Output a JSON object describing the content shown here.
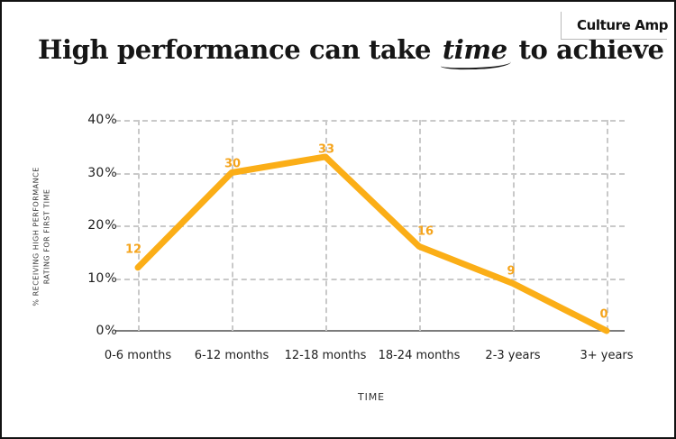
{
  "header": {
    "title_prefix": "High performance can take",
    "title_emphasis": "time",
    "title_suffix": "to achieve",
    "logo_text": "Culture Amp"
  },
  "chart_data": {
    "type": "line",
    "title": "High performance can take time to achieve",
    "categories": [
      "0-6 months",
      "6-12 months",
      "12-18 months",
      "18-24 months",
      "2-3 years",
      "3+ years"
    ],
    "values": [
      12,
      30,
      33,
      16,
      9,
      0
    ],
    "xlabel": "TIME",
    "ylabel": "% RECEIVING HIGH PERFORMANCE RATING FOR FIRST TIME",
    "ylabel_line1": "% RECEIVING HIGH PERFORMANCE",
    "ylabel_line2": "RATING FOR FIRST TIME",
    "y_ticks": [
      {
        "label": "40 %",
        "value": 40
      },
      {
        "label": "30 %",
        "value": 30
      },
      {
        "label": "20 %",
        "value": 20
      },
      {
        "label": "10 %",
        "value": 10
      },
      {
        "label": "0 %",
        "value": 0
      }
    ],
    "ylim": [
      0,
      40
    ],
    "grid": "dashed",
    "legend": "none",
    "line_color": "#FBAE17",
    "label_color": "#F5A41C",
    "grid_color": "#c9c9c9",
    "axis_color": "#7c7c7c"
  }
}
